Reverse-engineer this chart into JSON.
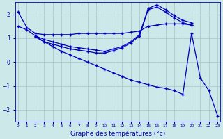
{
  "xlabel": "Graphe des températures (°c)",
  "background_color": "#cce8e8",
  "grid_color": "#aacccc",
  "line_color": "#0000bb",
  "x_ticks": [
    0,
    1,
    2,
    3,
    4,
    5,
    6,
    7,
    8,
    9,
    10,
    11,
    12,
    13,
    14,
    15,
    16,
    17,
    18,
    19,
    20,
    21,
    22,
    23
  ],
  "ylim": [
    -2.5,
    2.5
  ],
  "xlim": [
    -0.3,
    23.3
  ],
  "series": [
    {
      "x": [
        0,
        1,
        2,
        3,
        4,
        5,
        6,
        7,
        8,
        9,
        10,
        11,
        12,
        13,
        14,
        15,
        16,
        17,
        18,
        19,
        20
      ],
      "y": [
        2.1,
        1.45,
        1.2,
        1.15,
        1.15,
        1.15,
        1.15,
        1.2,
        1.2,
        1.2,
        1.2,
        1.2,
        1.2,
        1.25,
        1.3,
        1.5,
        1.55,
        1.6,
        1.6,
        1.6,
        1.55
      ],
      "style": "-",
      "marker": "+"
    },
    {
      "x": [
        2,
        3,
        4,
        5,
        6,
        7,
        8,
        9,
        10,
        11,
        12,
        13,
        14,
        15,
        16,
        17,
        18,
        19,
        20
      ],
      "y": [
        1.1,
        0.95,
        0.85,
        0.75,
        0.65,
        0.6,
        0.55,
        0.5,
        0.45,
        0.55,
        0.65,
        0.85,
        1.15,
        2.25,
        2.4,
        2.2,
        1.95,
        1.75,
        1.65
      ],
      "style": "-",
      "marker": "+"
    },
    {
      "x": [
        2,
        3,
        4,
        5,
        6,
        7,
        8,
        9,
        10,
        11,
        12,
        13,
        14,
        15,
        16,
        17,
        18,
        19,
        20
      ],
      "y": [
        1.05,
        0.85,
        0.75,
        0.65,
        0.55,
        0.5,
        0.45,
        0.38,
        0.38,
        0.48,
        0.6,
        0.8,
        1.1,
        2.2,
        2.3,
        2.1,
        1.85,
        1.65,
        1.55
      ],
      "style": "-",
      "marker": "+"
    },
    {
      "x": [
        0,
        1,
        2,
        3,
        4,
        5,
        6,
        7,
        8,
        9,
        10,
        11,
        12,
        13,
        14,
        15,
        16,
        17,
        18,
        19,
        20,
        21,
        22,
        23
      ],
      "y": [
        1.5,
        1.35,
        1.1,
        0.85,
        0.65,
        0.45,
        0.3,
        0.15,
        0.0,
        -0.15,
        -0.3,
        -0.45,
        -0.6,
        -0.75,
        -0.85,
        -0.95,
        -1.05,
        -1.1,
        -1.2,
        -1.35,
        1.2,
        -0.65,
        -1.2,
        -2.25
      ],
      "style": "-",
      "marker": "+"
    }
  ]
}
